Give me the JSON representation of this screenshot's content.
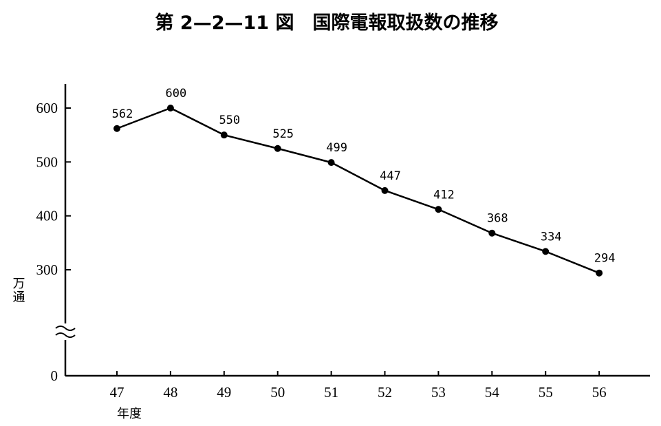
{
  "chart_data": {
    "type": "line",
    "title": "第 2—2—11 図　国際電報取扱数の推移",
    "xlabel": "年度",
    "ylabel": "万通",
    "categories": [
      "47",
      "48",
      "49",
      "50",
      "51",
      "52",
      "53",
      "54",
      "55",
      "56"
    ],
    "series": [
      {
        "values": [
          562,
          600,
          550,
          525,
          499,
          447,
          412,
          368,
          334,
          294
        ]
      }
    ],
    "y_ticks": [
      "0",
      "300",
      "400",
      "500",
      "600"
    ],
    "ylim": [
      0,
      640
    ],
    "y_axis_break": true,
    "grid": false,
    "legend": "none",
    "line_color": "#000000"
  }
}
